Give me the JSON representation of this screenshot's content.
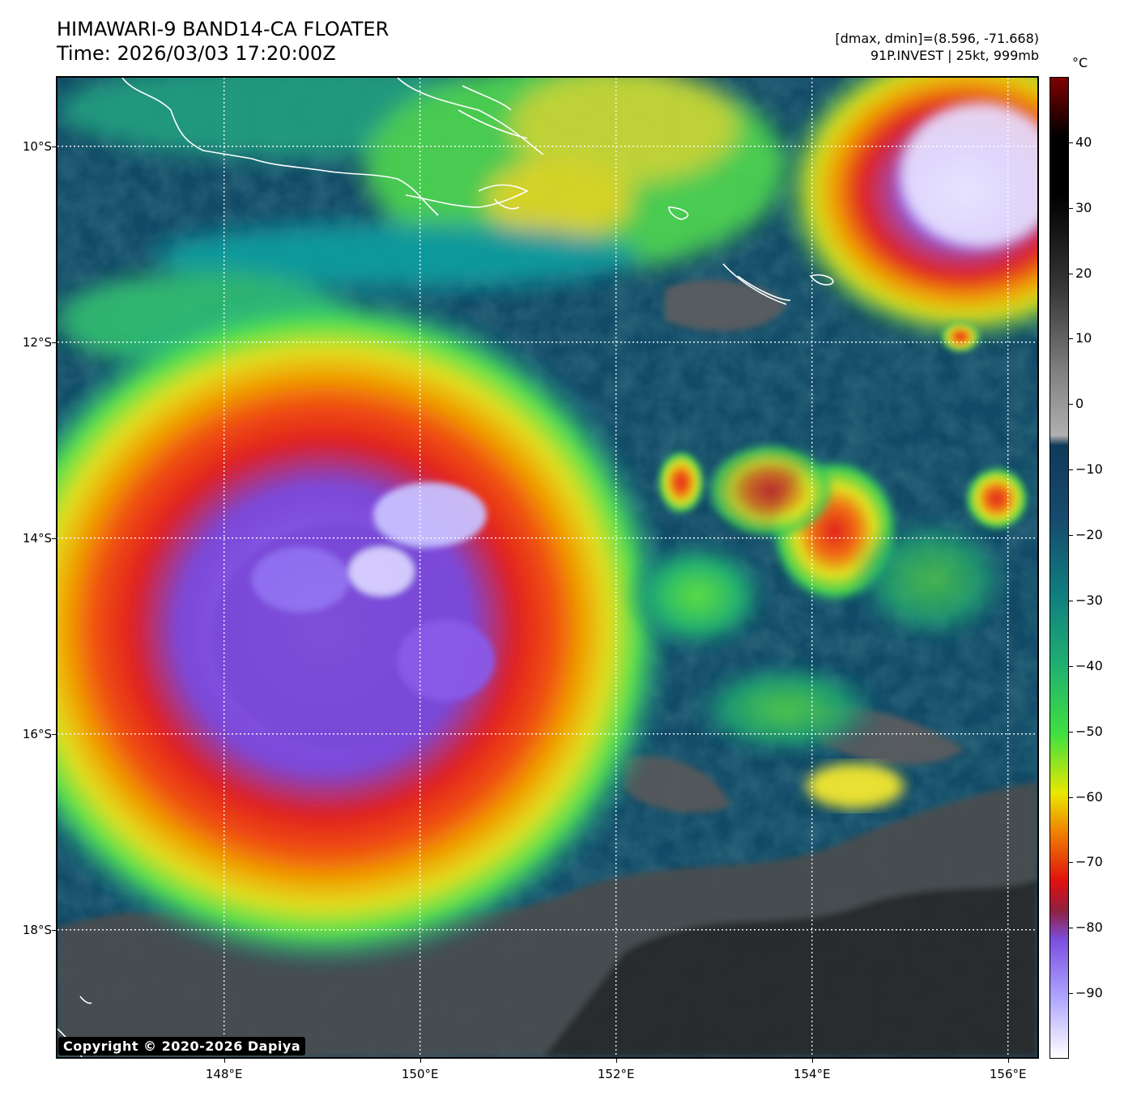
{
  "title": {
    "line1": "HIMAWARI-9 BAND14-CA FLOATER",
    "line2": "Time: 2026/03/03 17:20:00Z"
  },
  "meta": {
    "line1": "[dmax, dmin]=(8.596, -71.668)",
    "line2": "91P.INVEST | 25kt, 999mb"
  },
  "map": {
    "lat_labels": [
      {
        "value": -10,
        "label": "10°S"
      },
      {
        "value": -12,
        "label": "12°S"
      },
      {
        "value": -14,
        "label": "14°S"
      },
      {
        "value": -16,
        "label": "16°S"
      },
      {
        "value": -18,
        "label": "18°S"
      }
    ],
    "lon_labels": [
      {
        "value": 148,
        "label": "148°E"
      },
      {
        "value": 150,
        "label": "150°E"
      },
      {
        "value": 152,
        "label": "152°E"
      },
      {
        "value": 154,
        "label": "154°E"
      },
      {
        "value": 156,
        "label": "156°E"
      }
    ],
    "lon_range": [
      146.3,
      156.3
    ],
    "lat_range": [
      -9.3,
      -19.3
    ],
    "gridlines": "dotted-white"
  },
  "colorbar": {
    "unit": "°C",
    "ticks": [
      {
        "value": 40,
        "label": "40"
      },
      {
        "value": 30,
        "label": "30"
      },
      {
        "value": 20,
        "label": "20"
      },
      {
        "value": 10,
        "label": "10"
      },
      {
        "value": 0,
        "label": "0"
      },
      {
        "value": -10,
        "label": "−10"
      },
      {
        "value": -20,
        "label": "−20"
      },
      {
        "value": -30,
        "label": "−30"
      },
      {
        "value": -40,
        "label": "−40"
      },
      {
        "value": -50,
        "label": "−50"
      },
      {
        "value": -60,
        "label": "−60"
      },
      {
        "value": -70,
        "label": "−70"
      },
      {
        "value": -80,
        "label": "−80"
      },
      {
        "value": -90,
        "label": "−90"
      }
    ],
    "range": [
      -100,
      50
    ],
    "colors": {
      "cold_white": "#ffffff",
      "violet": "#7b4fe0",
      "red": "#e01010",
      "orange": "#f08000",
      "yellow": "#e8e800",
      "green": "#40e040",
      "teal": "#108080",
      "navy": "#103a5a",
      "gray": "#808080",
      "black": "#000000",
      "maroon": "#800000"
    }
  },
  "copyright": "Copyright © 2020-2026 Dapiya"
}
